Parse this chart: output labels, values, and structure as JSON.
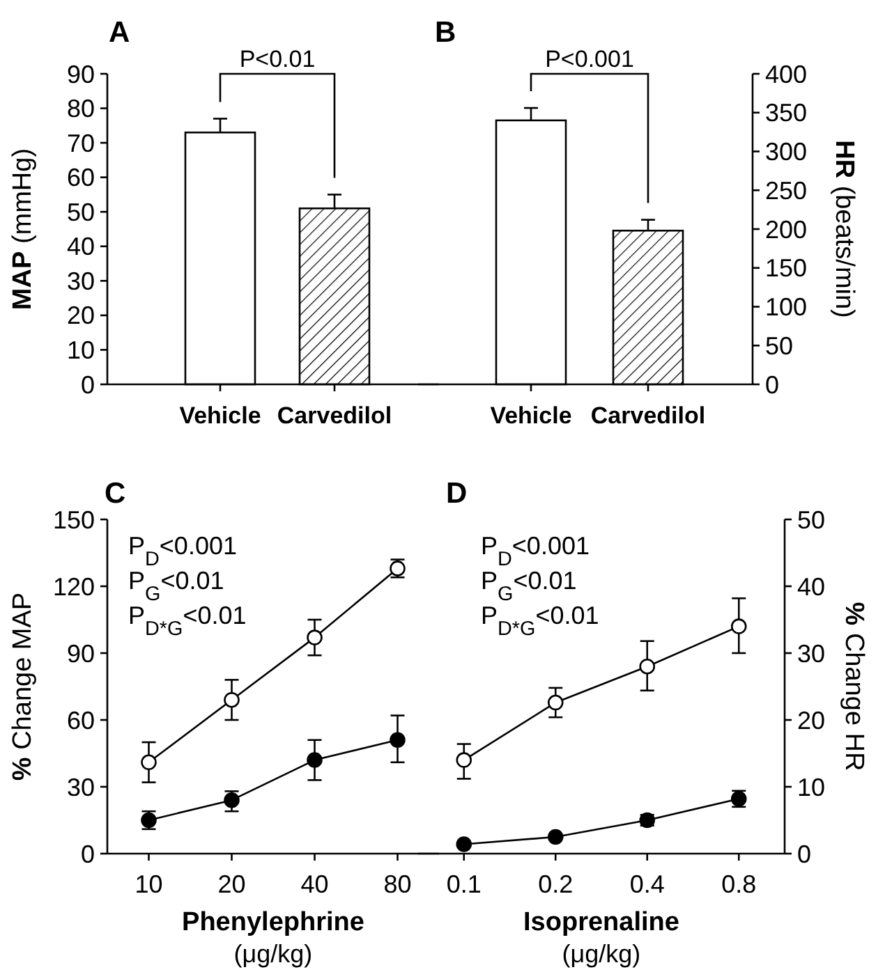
{
  "chart_data": [
    {
      "type": "bar",
      "title": "A",
      "ylabel": "MAP (mmHg)",
      "categories": [
        "Vehicle",
        "Carvedilol"
      ],
      "ylim": [
        0,
        90
      ],
      "yticks": [
        0,
        10,
        20,
        30,
        40,
        50,
        60,
        70,
        80,
        90
      ],
      "annotations": [
        "P<0.01"
      ],
      "series": [
        {
          "values": [
            73,
            51
          ],
          "colors": [
            "#ffffff",
            "#000000"
          ],
          "errors": [
            [
              73,
              77
            ],
            [
              51,
              55
            ]
          ]
        }
      ]
    },
    {
      "type": "bar",
      "title": "B",
      "y2label": "HR (beats/min)",
      "categories": [
        "Vehicle",
        "Carvedilol"
      ],
      "y2lim": [
        0,
        400
      ],
      "y2ticks": [
        0,
        50,
        100,
        150,
        200,
        250,
        300,
        350,
        400
      ],
      "annotations": [
        "P<0.001"
      ],
      "series": [
        {
          "values": [
            340,
            198
          ],
          "colors": [
            "#ffffff",
            "#000000"
          ],
          "errors": [
            [
              340,
              356
            ],
            [
              198,
              212
            ]
          ],
          "axis": "y2"
        }
      ]
    },
    {
      "type": "line",
      "title": "C",
      "ylabel": "% Change MAP",
      "xlabel": "Phenylephrine (μg/kg)",
      "categories": [
        "10",
        "20",
        "40",
        "80"
      ],
      "ylim": [
        0,
        150
      ],
      "yticks": [
        0,
        30,
        60,
        90,
        120,
        150
      ],
      "marker": "circle",
      "line_style": "solid",
      "annotations": [
        "P$_{D}$<0.001",
        "P$_{G}$<0.01",
        "P$_{D*G}$<0.01"
      ],
      "series": [
        {
          "color": "#ffffff",
          "values": [
            41,
            69,
            97,
            128
          ],
          "errors": [
            [
              32,
              50
            ],
            [
              60,
              78
            ],
            [
              89,
              105
            ],
            [
              124,
              132
            ]
          ]
        },
        {
          "color": "#000000",
          "values": [
            15,
            24,
            42,
            51
          ],
          "errors": [
            [
              11,
              19
            ],
            [
              19,
              28
            ],
            [
              33,
              51
            ],
            [
              41,
              62
            ]
          ]
        }
      ]
    },
    {
      "type": "line",
      "title": "D",
      "y2label": "% Change HR",
      "xlabel": "Isoprenaline (μg/kg)",
      "categories": [
        "0.1",
        "0.2",
        "0.4",
        "0.8"
      ],
      "y2lim": [
        0,
        50
      ],
      "y2ticks": [
        0,
        10,
        20,
        30,
        40,
        50
      ],
      "marker": "circle",
      "line_style": "solid",
      "annotations": [
        "P$_{D}$<0.001",
        "P$_{G}$<0.01",
        "P$_{D*G}$<0.01"
      ],
      "series": [
        {
          "color": "#ffffff",
          "values": [
            14,
            22.6,
            28,
            34
          ],
          "errors": [
            [
              11.2,
              16.4
            ],
            [
              20.4,
              24.8
            ],
            [
              24.4,
              31.8
            ],
            [
              30,
              38.2
            ]
          ],
          "axis": "y2"
        },
        {
          "color": "#000000",
          "values": [
            1.4,
            2.5,
            5,
            8.2
          ],
          "errors": [
            null,
            null,
            [
              4.2,
              5.8
            ],
            [
              7,
              9.4
            ]
          ],
          "axis": "y2"
        }
      ]
    }
  ]
}
